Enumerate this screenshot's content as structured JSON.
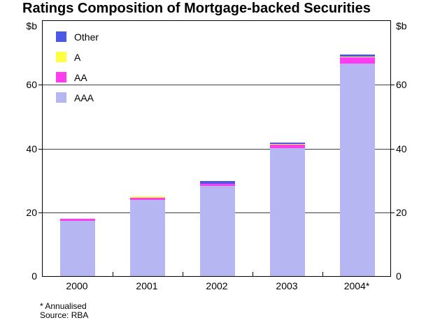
{
  "title": "Ratings Composition of Mortgage-backed Securities",
  "axis": {
    "unit_label_left": "$b",
    "unit_label_right": "$b",
    "y_ticks": [
      0,
      20,
      40,
      60
    ],
    "gridlines": [
      20,
      40,
      60
    ]
  },
  "chart_data": {
    "type": "bar",
    "stacked": true,
    "title": "Ratings Composition of Mortgage-backed Securities",
    "ylabel": "$b",
    "ylim": [
      0,
      80
    ],
    "grid": true,
    "legend_position": "top-left",
    "legend_order": [
      "Other",
      "A",
      "AA",
      "AAA"
    ],
    "categories": [
      "2000",
      "2001",
      "2002",
      "2003",
      "2004*"
    ],
    "series": [
      {
        "name": "AAA",
        "color": "#b6b6f3",
        "values": [
          17.3,
          24.0,
          28.3,
          40.1,
          66.7
        ]
      },
      {
        "name": "AA",
        "color": "#ff3cf0",
        "values": [
          0.7,
          0.5,
          0.7,
          1.0,
          1.8
        ]
      },
      {
        "name": "A",
        "color": "#ffff42",
        "values": [
          0.0,
          0.5,
          0.0,
          0.2,
          0.2
        ]
      },
      {
        "name": "Other",
        "color": "#4a5ae4",
        "values": [
          0.0,
          0.0,
          0.8,
          0.2,
          0.7
        ]
      }
    ],
    "totals": [
      18.0,
      25.0,
      29.8,
      41.5,
      69.4
    ]
  },
  "footnotes": {
    "annualised": "* Annualised",
    "source": "Source: RBA"
  }
}
